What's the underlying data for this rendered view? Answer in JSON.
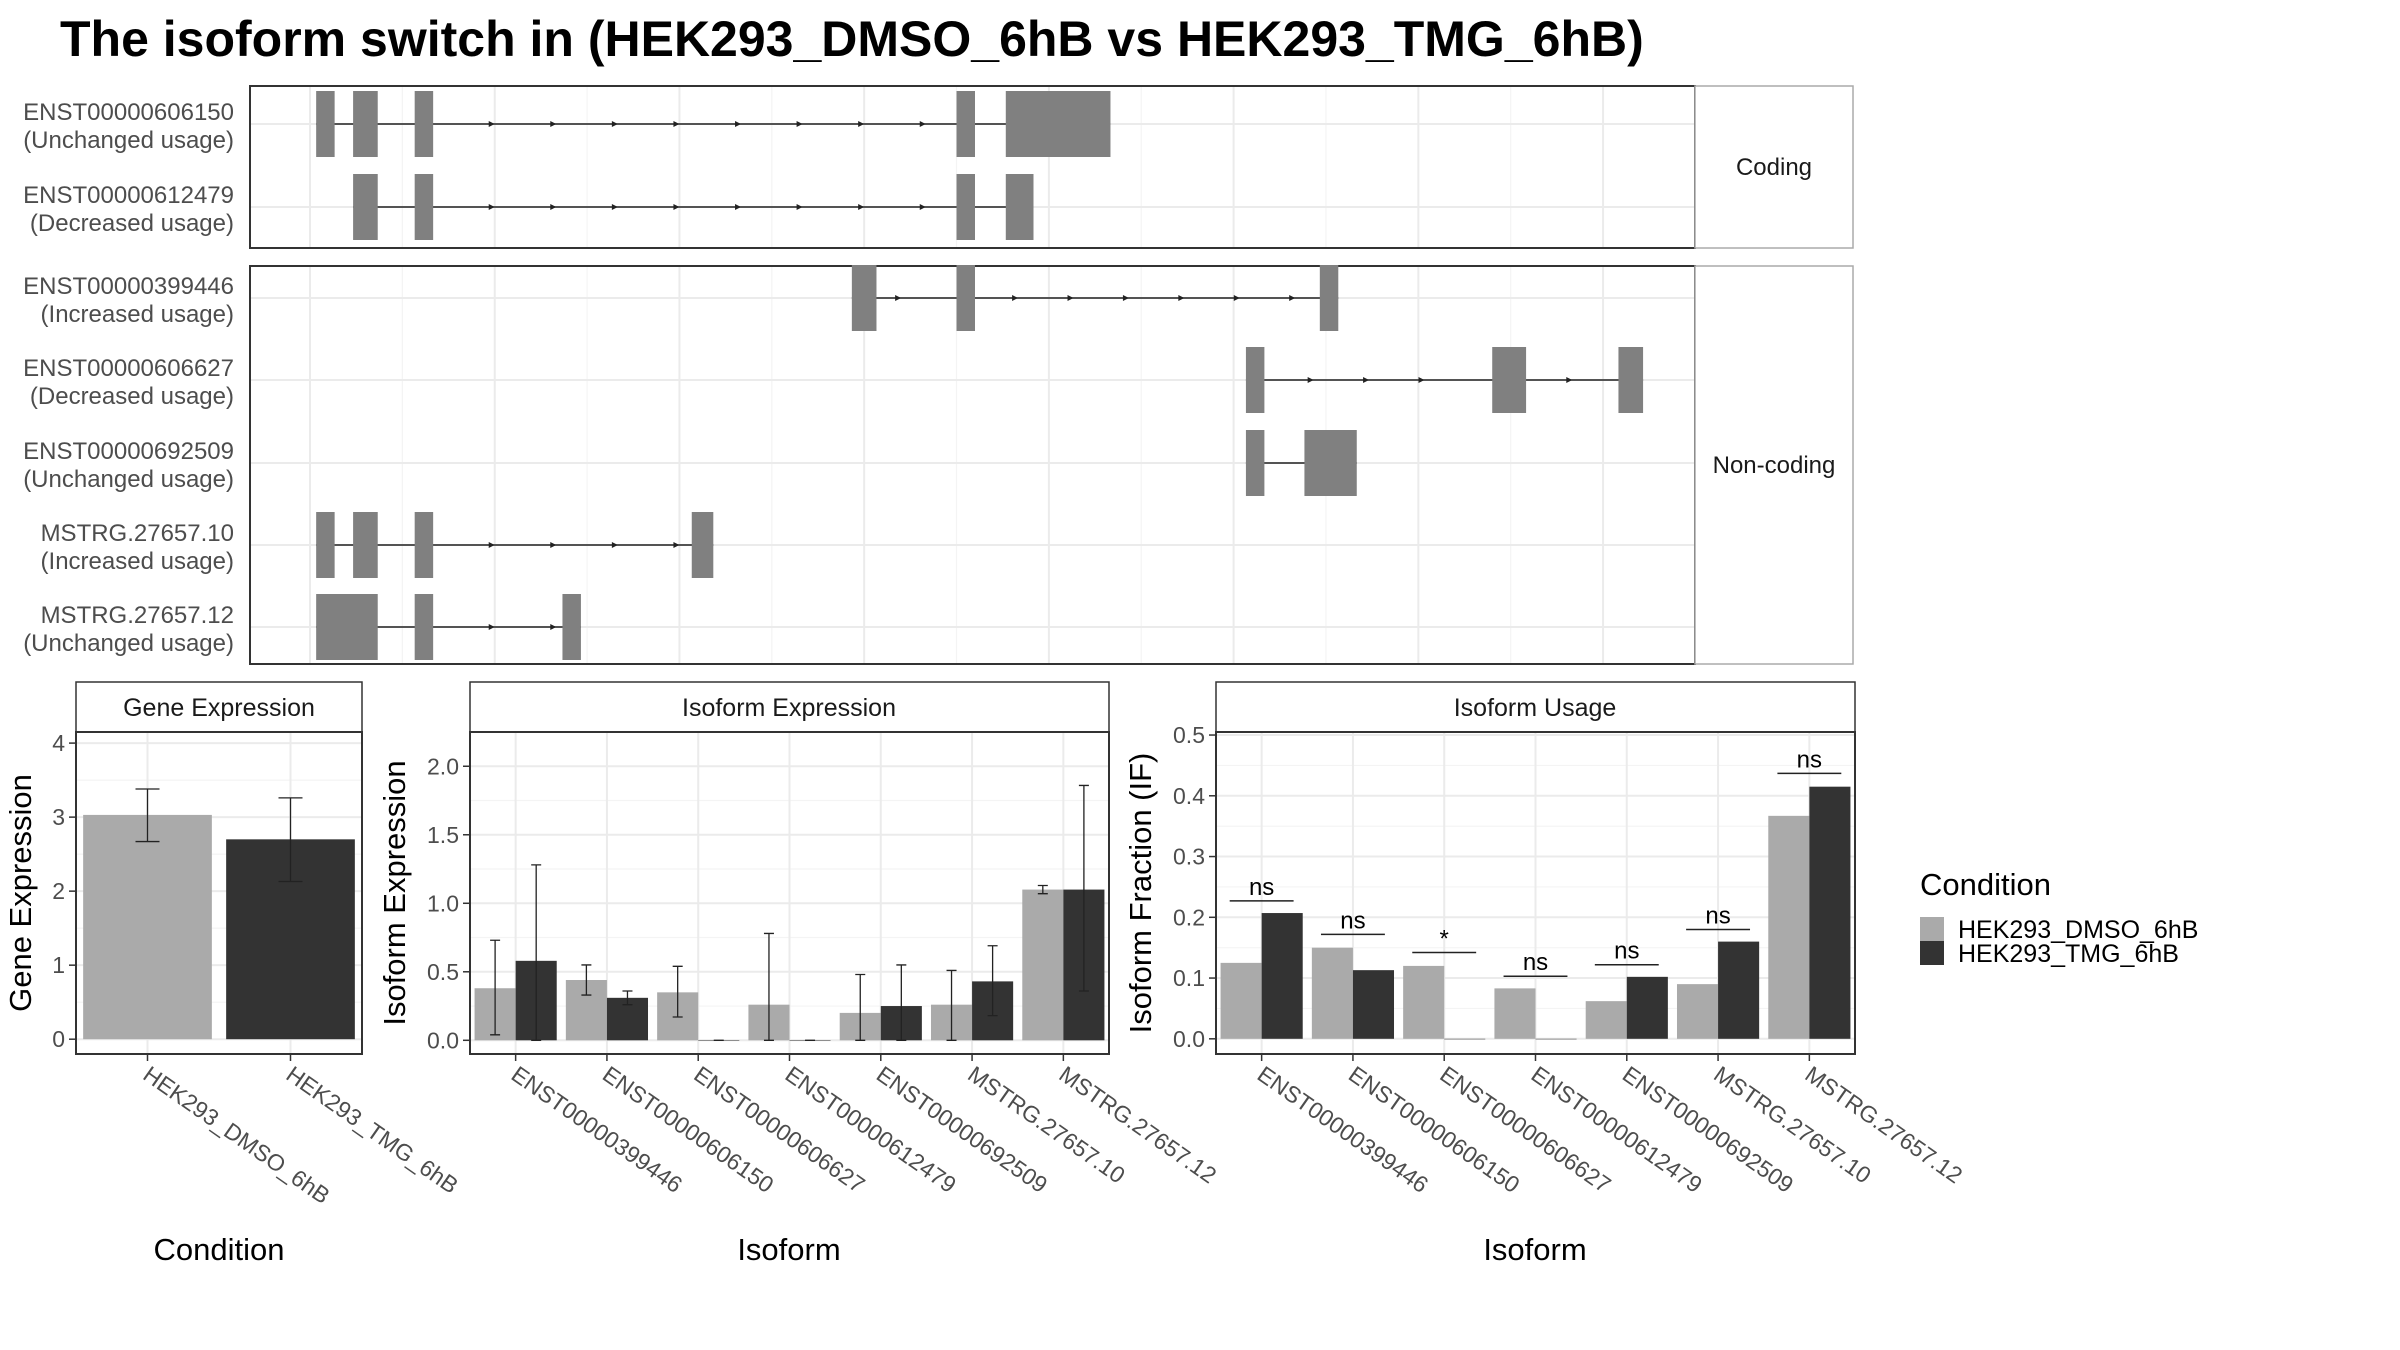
{
  "title": "The isoform switch in  (HEK293_DMSO_6hB vs HEK293_TMG_6hB)",
  "colors": {
    "dmso": "#aaaaaa",
    "tmg": "#333333",
    "exon": "#808080",
    "grid": "#ebebeb",
    "border": "#333333",
    "strip_border": "#aaaaaa"
  },
  "chart_data": [
    {
      "type": "gene-structure",
      "groups": [
        {
          "label": "Coding",
          "isoforms": [
            {
              "name": "ENST00000606150",
              "usage": "(Unchanged usage)",
              "exons": [
                [
                  1,
                  4
                ],
                [
                  7,
                  11
                ],
                [
                  17,
                  20
                ],
                [
                  105,
                  108
                ],
                [
                  113,
                  117.5
                ],
                [
                  117.5,
                  130
                ]
              ],
              "arrows": [
                30,
                40,
                50,
                60,
                70,
                80,
                90,
                100
              ]
            },
            {
              "name": "ENST00000612479",
              "usage": "(Decreased usage)",
              "exons": [
                [
                  7,
                  11
                ],
                [
                  17,
                  20
                ],
                [
                  105,
                  108
                ],
                [
                  113,
                  117.5
                ]
              ],
              "arrows": [
                30,
                40,
                50,
                60,
                70,
                80,
                90,
                100
              ]
            }
          ]
        },
        {
          "label": "Non-coding",
          "isoforms": [
            {
              "name": "ENST00000399446",
              "usage": "(Increased usage)",
              "exons": [
                [
                  88,
                  92
                ],
                [
                  105,
                  108
                ],
                [
                  164,
                  167
                ]
              ],
              "arrows": [
                96,
                115,
                124,
                133,
                142,
                151,
                160
              ]
            },
            {
              "name": "ENST00000606627",
              "usage": "(Decreased usage)",
              "exons": [
                [
                  152,
                  155
                ],
                [
                  192,
                  197.5
                ],
                [
                  212.5,
                  216.5
                ]
              ],
              "arrows": [
                163,
                172,
                181,
                205
              ]
            },
            {
              "name": "ENST00000692509",
              "usage": "(Unchanged usage)",
              "exons": [
                [
                  152,
                  155
                ],
                [
                  161.5,
                  170
                ]
              ],
              "arrows": []
            },
            {
              "name": "MSTRG.27657.10",
              "usage": "(Increased usage)",
              "exons": [
                [
                  1,
                  4
                ],
                [
                  7,
                  11
                ],
                [
                  17,
                  20
                ],
                [
                  62,
                  65.5
                ]
              ],
              "arrows": [
                30,
                40,
                50,
                60
              ]
            },
            {
              "name": "MSTRG.27657.12",
              "usage": "(Unchanged usage)",
              "exons": [
                [
                  1,
                  11
                ],
                [
                  17,
                  20
                ],
                [
                  41,
                  44
                ]
              ],
              "arrows": [
                30,
                40
              ]
            }
          ]
        }
      ]
    },
    {
      "type": "bar",
      "title": "Gene Expression",
      "xlabel": "Condition",
      "ylabel": "Gene Expression",
      "ylim": [
        -0.2,
        4.15
      ],
      "yticks": [
        0,
        1,
        2,
        3,
        4
      ],
      "categories": [
        "HEK293_DMSO_6hB",
        "HEK293_TMG_6hB"
      ],
      "values": [
        3.03,
        2.7
      ],
      "err_low": [
        2.67,
        2.13
      ],
      "err_high": [
        3.38,
        3.26
      ]
    },
    {
      "type": "bar",
      "title": "Isoform Expression",
      "xlabel": "Isoform",
      "ylabel": "Isoform Expression",
      "ylim": [
        -0.1,
        2.25
      ],
      "yticks": [
        0.0,
        0.5,
        1.0,
        1.5,
        2.0
      ],
      "ytick_labels": [
        "0.0",
        "0.5",
        "1.0",
        "1.5",
        "2.0"
      ],
      "categories": [
        "ENST00000399446",
        "ENST00000606150",
        "ENST00000606627",
        "ENST00000612479",
        "ENST00000692509",
        "MSTRG.27657.10",
        "MSTRG.27657.12"
      ],
      "series": [
        {
          "name": "HEK293_DMSO_6hB",
          "values": [
            0.38,
            0.44,
            0.35,
            0.26,
            0.2,
            0.26,
            1.1
          ],
          "err_low": [
            0.04,
            0.33,
            0.17,
            0.0,
            0.0,
            0.0,
            1.07
          ],
          "err_high": [
            0.73,
            0.55,
            0.54,
            0.78,
            0.48,
            0.51,
            1.13
          ]
        },
        {
          "name": "HEK293_TMG_6hB",
          "values": [
            0.58,
            0.31,
            0.0,
            0.0,
            0.25,
            0.43,
            1.1
          ],
          "err_low": [
            0.0,
            0.26,
            0.0,
            0.0,
            0.0,
            0.18,
            0.36
          ],
          "err_high": [
            1.28,
            0.36,
            0.0,
            0.0,
            0.55,
            0.69,
            1.86
          ]
        }
      ]
    },
    {
      "type": "bar",
      "title": "Isoform Usage",
      "xlabel": "Isoform",
      "ylabel": "Isoform Fraction (IF)",
      "ylim": [
        -0.025,
        0.505
      ],
      "yticks": [
        0.0,
        0.1,
        0.2,
        0.3,
        0.4,
        0.5
      ],
      "ytick_labels": [
        "0.0",
        "0.1",
        "0.2",
        "0.3",
        "0.4",
        "0.5"
      ],
      "categories": [
        "ENST00000399446",
        "ENST00000606150",
        "ENST00000606627",
        "ENST00000612479",
        "ENST00000692509",
        "MSTRG.27657.10",
        "MSTRG.27657.12"
      ],
      "series": [
        {
          "name": "HEK293_DMSO_6hB",
          "values": [
            0.125,
            0.15,
            0.12,
            0.083,
            0.062,
            0.09,
            0.367
          ]
        },
        {
          "name": "HEK293_TMG_6hB",
          "values": [
            0.207,
            0.113,
            0.0,
            0.0,
            0.102,
            0.16,
            0.415
          ]
        }
      ],
      "significance": [
        "ns",
        "ns",
        "*",
        "ns",
        "ns",
        "ns",
        "ns"
      ],
      "sig_y": [
        0.227,
        0.172,
        0.142,
        0.103,
        0.122,
        0.18,
        0.437
      ]
    }
  ],
  "legend": {
    "title": "Condition",
    "items": [
      "HEK293_DMSO_6hB",
      "HEK293_TMG_6hB"
    ]
  }
}
